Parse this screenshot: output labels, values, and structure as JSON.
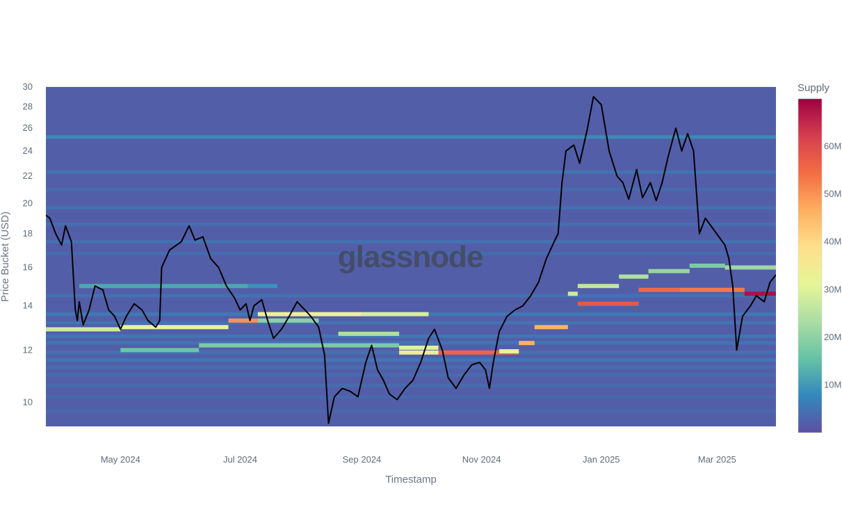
{
  "chart_data": {
    "type": "heatmap",
    "title": "",
    "xlabel": "Timestamp",
    "ylabel": "Price Bucket (USD)",
    "y_scale": "log",
    "ylim": [
      9.2,
      30
    ],
    "xlim": [
      "2024-03-24",
      "2025-03-31"
    ],
    "x_ticks": [
      {
        "date": "2024-05-01",
        "label": "May 2024"
      },
      {
        "date": "2024-07-01",
        "label": "Jul 2024"
      },
      {
        "date": "2024-09-01",
        "label": "Sep 2024"
      },
      {
        "date": "2024-11-01",
        "label": "Nov 2024"
      },
      {
        "date": "2025-01-01",
        "label": "Jan 2025"
      },
      {
        "date": "2025-03-01",
        "label": "Mar 2025"
      }
    ],
    "y_ticks": [
      10,
      12,
      14,
      16,
      18,
      20,
      22,
      24,
      26,
      28,
      30
    ],
    "colorbar": {
      "title": "Supply",
      "range": [
        0,
        70000000
      ],
      "ticks": [
        {
          "value": 10000000,
          "label": "10M"
        },
        {
          "value": 20000000,
          "label": "20M"
        },
        {
          "value": 30000000,
          "label": "30M"
        },
        {
          "value": 40000000,
          "label": "40M"
        },
        {
          "value": 50000000,
          "label": "50M"
        },
        {
          "value": 60000000,
          "label": "60M"
        }
      ],
      "colors": [
        "#5e4fa2",
        "#3288bd",
        "#66c2a5",
        "#abdda4",
        "#e6f598",
        "#fee08b",
        "#fdae61",
        "#f46d43",
        "#d53e4f",
        "#9e0142"
      ]
    },
    "background_supply": 2000000,
    "background_bands": [
      {
        "price": 25.2,
        "supply": 9000000
      },
      {
        "price": 22.3,
        "supply": 5500000
      },
      {
        "price": 21.0,
        "supply": 4000000
      },
      {
        "price": 19.7,
        "supply": 5000000
      },
      {
        "price": 18.6,
        "supply": 4500000
      },
      {
        "price": 17.5,
        "supply": 5000000
      },
      {
        "price": 16.8,
        "supply": 4000000
      },
      {
        "price": 14.5,
        "supply": 5000000
      },
      {
        "price": 13.6,
        "supply": 6000000
      },
      {
        "price": 13.2,
        "supply": 5500000
      },
      {
        "price": 12.6,
        "supply": 6000000
      },
      {
        "price": 12.3,
        "supply": 5500000
      },
      {
        "price": 11.9,
        "supply": 5000000
      },
      {
        "price": 11.6,
        "supply": 6000000
      },
      {
        "price": 11.3,
        "supply": 4500000
      },
      {
        "price": 11.0,
        "supply": 4000000
      },
      {
        "price": 10.6,
        "supply": 4000000
      },
      {
        "price": 10.2,
        "supply": 3500000
      },
      {
        "price": 9.7,
        "supply": 3500000
      }
    ],
    "supply_segments": [
      {
        "start": "2024-03-24",
        "end": "2024-05-01",
        "price": 12.9,
        "supply": 28000000
      },
      {
        "start": "2024-05-01",
        "end": "2024-06-25",
        "price": 13.0,
        "supply": 31000000
      },
      {
        "start": "2024-05-01",
        "end": "2024-06-10",
        "price": 12.0,
        "supply": 16000000
      },
      {
        "start": "2024-06-10",
        "end": "2024-09-20",
        "price": 12.2,
        "supply": 18000000
      },
      {
        "start": "2024-04-10",
        "end": "2024-07-05",
        "price": 15.0,
        "supply": 12000000
      },
      {
        "start": "2024-07-05",
        "end": "2024-07-20",
        "price": 15.0,
        "supply": 9000000
      },
      {
        "start": "2024-06-25",
        "end": "2024-07-10",
        "price": 13.3,
        "supply": 50000000
      },
      {
        "start": "2024-07-10",
        "end": "2024-09-01",
        "price": 13.6,
        "supply": 33000000
      },
      {
        "start": "2024-09-01",
        "end": "2024-10-05",
        "price": 13.6,
        "supply": 29000000
      },
      {
        "start": "2024-07-10",
        "end": "2024-08-10",
        "price": 13.3,
        "supply": 20000000
      },
      {
        "start": "2024-08-20",
        "end": "2024-09-20",
        "price": 12.7,
        "supply": 24000000
      },
      {
        "start": "2024-09-20",
        "end": "2024-10-10",
        "price": 12.1,
        "supply": 30000000
      },
      {
        "start": "2024-09-20",
        "end": "2024-10-10",
        "price": 11.9,
        "supply": 34000000
      },
      {
        "start": "2024-10-10",
        "end": "2024-11-20",
        "price": 11.9,
        "supply": 56000000
      },
      {
        "start": "2024-11-10",
        "end": "2024-11-20",
        "price": 11.95,
        "supply": 32000000
      },
      {
        "start": "2024-11-20",
        "end": "2024-11-28",
        "price": 12.3,
        "supply": 46000000
      },
      {
        "start": "2024-11-28",
        "end": "2024-12-15",
        "price": 13.0,
        "supply": 46000000
      },
      {
        "start": "2024-12-15",
        "end": "2024-12-20",
        "price": 14.6,
        "supply": 28000000
      },
      {
        "start": "2024-12-20",
        "end": "2025-01-20",
        "price": 14.1,
        "supply": 58000000
      },
      {
        "start": "2025-01-20",
        "end": "2025-02-10",
        "price": 14.8,
        "supply": 55000000
      },
      {
        "start": "2025-02-10",
        "end": "2025-03-15",
        "price": 14.8,
        "supply": 53000000
      },
      {
        "start": "2025-03-15",
        "end": "2025-03-31",
        "price": 14.6,
        "supply": 68000000
      },
      {
        "start": "2024-12-20",
        "end": "2025-01-10",
        "price": 15.0,
        "supply": 26000000
      },
      {
        "start": "2025-01-10",
        "end": "2025-01-25",
        "price": 15.5,
        "supply": 24000000
      },
      {
        "start": "2025-01-25",
        "end": "2025-02-15",
        "price": 15.8,
        "supply": 21000000
      },
      {
        "start": "2025-02-15",
        "end": "2025-03-05",
        "price": 16.1,
        "supply": 18000000
      },
      {
        "start": "2025-03-05",
        "end": "2025-03-31",
        "price": 16.0,
        "supply": 22000000
      }
    ],
    "series": [
      {
        "values": [
          [
            "2024-03-24",
            19.2
          ],
          [
            "2024-03-26",
            19.0
          ],
          [
            "2024-03-29",
            18.0
          ],
          [
            "2024-04-01",
            17.3
          ],
          [
            "2024-04-03",
            18.5
          ],
          [
            "2024-04-06",
            17.5
          ],
          [
            "2024-04-08",
            13.8
          ],
          [
            "2024-04-09",
            13.3
          ],
          [
            "2024-04-10",
            14.2
          ],
          [
            "2024-04-12",
            13.1
          ],
          [
            "2024-04-15",
            13.8
          ],
          [
            "2024-04-18",
            15.0
          ],
          [
            "2024-04-22",
            14.8
          ],
          [
            "2024-04-25",
            13.8
          ],
          [
            "2024-04-28",
            13.5
          ],
          [
            "2024-05-01",
            12.9
          ],
          [
            "2024-05-04",
            13.5
          ],
          [
            "2024-05-08",
            14.1
          ],
          [
            "2024-05-12",
            13.8
          ],
          [
            "2024-05-15",
            13.3
          ],
          [
            "2024-05-19",
            13.0
          ],
          [
            "2024-05-21",
            13.3
          ],
          [
            "2024-05-22",
            16.0
          ],
          [
            "2024-05-26",
            17.0
          ],
          [
            "2024-06-01",
            17.5
          ],
          [
            "2024-06-05",
            18.5
          ],
          [
            "2024-06-08",
            17.6
          ],
          [
            "2024-06-12",
            17.8
          ],
          [
            "2024-06-16",
            16.5
          ],
          [
            "2024-06-20",
            16.0
          ],
          [
            "2024-06-24",
            15.0
          ],
          [
            "2024-06-28",
            14.4
          ],
          [
            "2024-07-01",
            13.8
          ],
          [
            "2024-07-04",
            14.1
          ],
          [
            "2024-07-06",
            13.3
          ],
          [
            "2024-07-08",
            14.0
          ],
          [
            "2024-07-12",
            14.3
          ],
          [
            "2024-07-15",
            13.3
          ],
          [
            "2024-07-18",
            12.5
          ],
          [
            "2024-07-22",
            12.9
          ],
          [
            "2024-07-26",
            13.5
          ],
          [
            "2024-07-30",
            14.2
          ],
          [
            "2024-08-03",
            13.8
          ],
          [
            "2024-08-06",
            13.5
          ],
          [
            "2024-08-10",
            13.0
          ],
          [
            "2024-08-13",
            11.8
          ],
          [
            "2024-08-15",
            9.3
          ],
          [
            "2024-08-18",
            10.2
          ],
          [
            "2024-08-22",
            10.5
          ],
          [
            "2024-08-26",
            10.4
          ],
          [
            "2024-08-30",
            10.2
          ],
          [
            "2024-09-03",
            11.5
          ],
          [
            "2024-09-06",
            12.2
          ],
          [
            "2024-09-09",
            11.2
          ],
          [
            "2024-09-12",
            10.8
          ],
          [
            "2024-09-15",
            10.3
          ],
          [
            "2024-09-19",
            10.1
          ],
          [
            "2024-09-23",
            10.5
          ],
          [
            "2024-09-27",
            10.8
          ],
          [
            "2024-10-01",
            11.5
          ],
          [
            "2024-10-05",
            12.5
          ],
          [
            "2024-10-08",
            12.9
          ],
          [
            "2024-10-12",
            12.0
          ],
          [
            "2024-10-15",
            10.9
          ],
          [
            "2024-10-19",
            10.5
          ],
          [
            "2024-10-23",
            11.0
          ],
          [
            "2024-10-27",
            11.4
          ],
          [
            "2024-10-31",
            11.5
          ],
          [
            "2024-11-03",
            11.2
          ],
          [
            "2024-11-05",
            10.5
          ],
          [
            "2024-11-07",
            11.5
          ],
          [
            "2024-11-10",
            12.8
          ],
          [
            "2024-11-14",
            13.5
          ],
          [
            "2024-11-18",
            13.8
          ],
          [
            "2024-11-22",
            14.0
          ],
          [
            "2024-11-26",
            14.5
          ],
          [
            "2024-11-30",
            15.2
          ],
          [
            "2024-12-04",
            16.5
          ],
          [
            "2024-12-08",
            17.5
          ],
          [
            "2024-12-10",
            18.0
          ],
          [
            "2024-12-12",
            21.5
          ],
          [
            "2024-12-14",
            24.0
          ],
          [
            "2024-12-18",
            24.5
          ],
          [
            "2024-12-21",
            23.0
          ],
          [
            "2024-12-25",
            26.0
          ],
          [
            "2024-12-28",
            29.0
          ],
          [
            "2025-01-01",
            28.2
          ],
          [
            "2025-01-05",
            24.0
          ],
          [
            "2025-01-09",
            22.0
          ],
          [
            "2025-01-12",
            21.5
          ],
          [
            "2025-01-15",
            20.3
          ],
          [
            "2025-01-19",
            22.5
          ],
          [
            "2025-01-22",
            20.4
          ],
          [
            "2025-01-26",
            21.5
          ],
          [
            "2025-01-29",
            20.2
          ],
          [
            "2025-02-01",
            21.5
          ],
          [
            "2025-02-04",
            23.5
          ],
          [
            "2025-02-08",
            26.0
          ],
          [
            "2025-02-11",
            24.0
          ],
          [
            "2025-02-14",
            25.5
          ],
          [
            "2025-02-17",
            24.0
          ],
          [
            "2025-02-20",
            18.0
          ],
          [
            "2025-02-23",
            19.0
          ],
          [
            "2025-02-27",
            18.3
          ],
          [
            "2025-03-02",
            17.8
          ],
          [
            "2025-03-05",
            17.3
          ],
          [
            "2025-03-07",
            16.5
          ],
          [
            "2025-03-09",
            15.0
          ],
          [
            "2025-03-11",
            12.0
          ],
          [
            "2025-03-14",
            13.5
          ],
          [
            "2025-03-18",
            14.0
          ],
          [
            "2025-03-21",
            14.5
          ],
          [
            "2025-03-25",
            14.2
          ],
          [
            "2025-03-28",
            15.2
          ],
          [
            "2025-03-31",
            15.6
          ]
        ]
      }
    ],
    "watermark": "glassnode"
  }
}
